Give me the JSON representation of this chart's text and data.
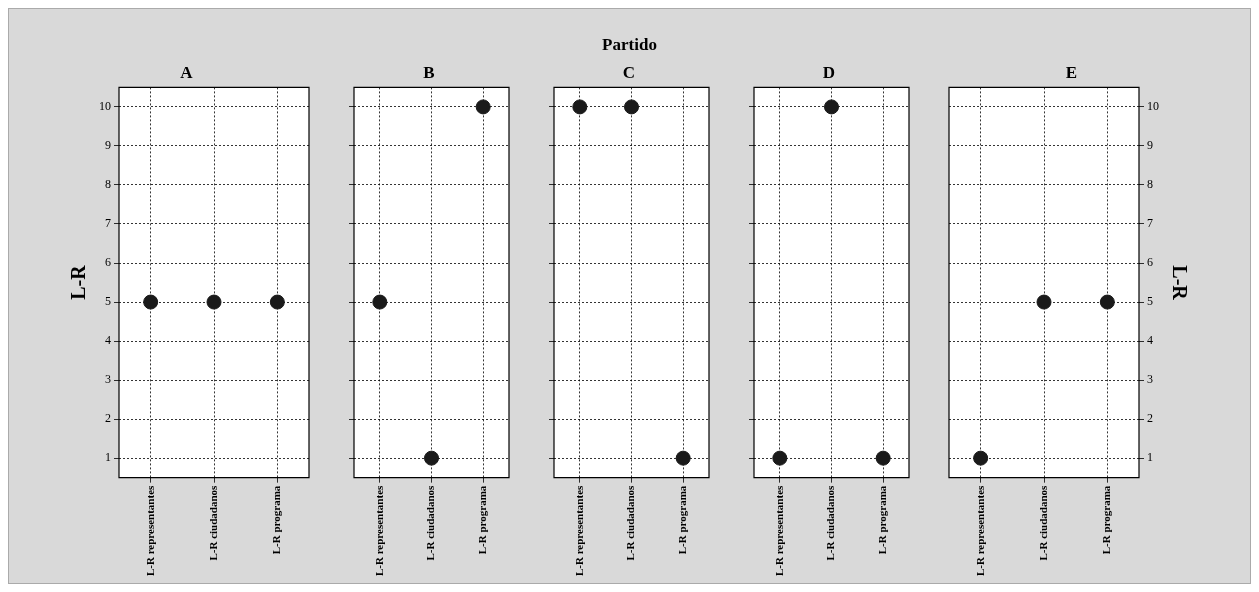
{
  "chart_data": [
    {
      "type": "scatter",
      "title": "A",
      "ylabel": "L-R",
      "annotations": [
        "Partido"
      ],
      "categories": [
        "L-R representantes",
        "L-R ciudadanos",
        "L-R programa"
      ],
      "series": [
        {
          "color": "#1a1a1a",
          "values": [
            5,
            5,
            5
          ]
        }
      ],
      "ylim": [
        0.5,
        10.5
      ],
      "yticks": [
        1,
        2,
        3,
        4,
        5,
        6,
        7,
        8,
        9,
        10
      ],
      "grid": true,
      "marker": "circle"
    },
    {
      "type": "scatter",
      "title": "B",
      "categories": [
        "L-R representantes",
        "L-R ciudadanos",
        "L-R programa"
      ],
      "series": [
        {
          "color": "#1a1a1a",
          "values": [
            5,
            1,
            10
          ]
        }
      ],
      "ylim": [
        0.5,
        10.5
      ],
      "yticks": [
        1,
        2,
        3,
        4,
        5,
        6,
        7,
        8,
        9,
        10
      ],
      "grid": true,
      "marker": "circle",
      "tick_labels": "x"
    },
    {
      "type": "scatter",
      "title": "C",
      "categories": [
        "L-R representantes",
        "L-R ciudadanos",
        "L-R programa"
      ],
      "series": [
        {
          "color": "#1a1a1a",
          "values": [
            10,
            10,
            1
          ]
        }
      ],
      "ylim": [
        0.5,
        10.5
      ],
      "yticks": [
        1,
        2,
        3,
        4,
        5,
        6,
        7,
        8,
        9,
        10
      ],
      "grid": true,
      "marker": "circle",
      "tick_labels": "x"
    },
    {
      "type": "scatter",
      "title": "D",
      "categories": [
        "L-R representantes",
        "L-R ciudadanos",
        "L-R programa"
      ],
      "series": [
        {
          "color": "#1a1a1a",
          "values": [
            1,
            10,
            1
          ]
        }
      ],
      "ylim": [
        0.5,
        10.5
      ],
      "yticks": [
        1,
        2,
        3,
        4,
        5,
        6,
        7,
        8,
        9,
        10
      ],
      "grid": true,
      "marker": "circle",
      "tick_labels": "x"
    },
    {
      "type": "scatter",
      "title": "E",
      "y2label": "L-R",
      "categories": [
        "L-R representantes",
        "L-R ciudadanos",
        "L-R programa"
      ],
      "series": [
        {
          "color": "#1a1a1a",
          "values": [
            1,
            5,
            5
          ],
          "axis": "y2"
        }
      ],
      "y2lim": [
        0.5,
        10.5
      ],
      "y2ticks": [
        1,
        2,
        3,
        4,
        5,
        6,
        7,
        8,
        9,
        10
      ],
      "grid": true,
      "marker": "circle"
    }
  ]
}
